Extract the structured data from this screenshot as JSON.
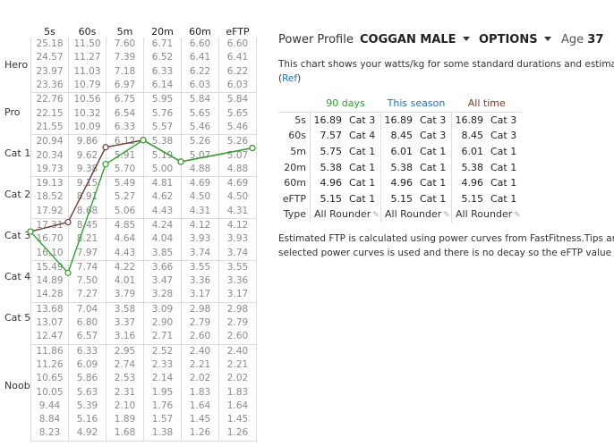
{
  "grid": {
    "columns": [
      "5s",
      "60s",
      "5m",
      "20m",
      "60m",
      "eFTP"
    ],
    "categories": [
      {
        "label": "Hero",
        "rows": [
          [
            "25.18",
            "11.50",
            "7.60",
            "6.71",
            "6.60",
            "6.60"
          ],
          [
            "24.57",
            "11.27",
            "7.39",
            "6.52",
            "6.41",
            "6.41"
          ],
          [
            "23.97",
            "11.03",
            "7.18",
            "6.33",
            "6.22",
            "6.22"
          ],
          [
            "23.36",
            "10.79",
            "6.97",
            "6.14",
            "6.03",
            "6.03"
          ]
        ]
      },
      {
        "label": "Pro",
        "rows": [
          [
            "22.76",
            "10.56",
            "6.75",
            "5.95",
            "5.84",
            "5.84"
          ],
          [
            "22.15",
            "10.32",
            "6.54",
            "5.76",
            "5.65",
            "5.65"
          ],
          [
            "21.55",
            "10.09",
            "6.33",
            "5.57",
            "5.46",
            "5.46"
          ]
        ]
      },
      {
        "label": "Cat 1",
        "rows": [
          [
            "20.94",
            "9.86",
            "6.12",
            "5.38",
            "5.26",
            "5.26"
          ],
          [
            "20.34",
            "9.62",
            "5.91",
            "5.19",
            "5.07",
            "5.07"
          ],
          [
            "19.73",
            "9.38",
            "5.70",
            "5.00",
            "4.88",
            "4.88"
          ]
        ]
      },
      {
        "label": "Cat 2",
        "rows": [
          [
            "19.13",
            "9.15",
            "5.49",
            "4.81",
            "4.69",
            "4.69"
          ],
          [
            "18.52",
            "8.91",
            "5.27",
            "4.62",
            "4.50",
            "4.50"
          ],
          [
            "17.92",
            "8.68",
            "5.06",
            "4.43",
            "4.31",
            "4.31"
          ]
        ]
      },
      {
        "label": "Cat 3",
        "rows": [
          [
            "17.31",
            "8.45",
            "4.85",
            "4.24",
            "4.12",
            "4.12"
          ],
          [
            "16.70",
            "8.21",
            "4.64",
            "4.04",
            "3.93",
            "3.93"
          ],
          [
            "16.10",
            "7.97",
            "4.43",
            "3.85",
            "3.74",
            "3.74"
          ]
        ]
      },
      {
        "label": "Cat 4",
        "rows": [
          [
            "15.49",
            "7.74",
            "4.22",
            "3.66",
            "3.55",
            "3.55"
          ],
          [
            "14.89",
            "7.50",
            "4.01",
            "3.47",
            "3.36",
            "3.36"
          ],
          [
            "14.28",
            "7.27",
            "3.79",
            "3.28",
            "3.17",
            "3.17"
          ]
        ]
      },
      {
        "label": "Cat 5",
        "rows": [
          [
            "13.68",
            "7.04",
            "3.58",
            "3.09",
            "2.98",
            "2.98"
          ],
          [
            "13.07",
            "6.80",
            "3.37",
            "2.90",
            "2.79",
            "2.79"
          ],
          [
            "12.47",
            "6.57",
            "3.16",
            "2.71",
            "2.60",
            "2.60"
          ]
        ]
      },
      {
        "label": "Noob",
        "rows": [
          [
            "11.86",
            "6.33",
            "2.95",
            "2.52",
            "2.40",
            "2.40"
          ],
          [
            "11.26",
            "6.09",
            "2.74",
            "2.33",
            "2.21",
            "2.21"
          ],
          [
            "10.65",
            "5.86",
            "2.53",
            "2.14",
            "2.02",
            "2.02"
          ],
          [
            "10.05",
            "5.63",
            "2.31",
            "1.95",
            "1.83",
            "1.83"
          ],
          [
            "9.44",
            "5.39",
            "2.10",
            "1.76",
            "1.64",
            "1.64"
          ],
          [
            "8.84",
            "5.16",
            "1.89",
            "1.57",
            "1.45",
            "1.45"
          ],
          [
            "8.23",
            "4.92",
            "1.68",
            "1.38",
            "1.26",
            "1.26"
          ]
        ]
      }
    ],
    "series": [
      {
        "name": "All time",
        "color": "#6b3a30",
        "values": [
          16.89,
          8.45,
          6.01,
          5.38,
          4.96,
          5.15
        ]
      },
      {
        "name": "90 days",
        "color": "#2ea02e",
        "values": [
          16.89,
          7.57,
          5.75,
          5.38,
          4.96,
          5.15
        ]
      }
    ]
  },
  "header": {
    "title": "Power Profile",
    "profile_select": "COGGAN MALE",
    "options_label": "OPTIONS",
    "age_label": "Age",
    "age_value": "37"
  },
  "description": {
    "line1": "This chart shows your watts/kg for some standard durations and estimated FTP p",
    "ref_open": "(",
    "ref_link": "Ref",
    "ref_close": ")"
  },
  "stats": {
    "columns": [
      {
        "label": "90 days",
        "color": "#2ea02e"
      },
      {
        "label": "This season",
        "color": "#1e6fc8"
      },
      {
        "label": "All time",
        "color": "#7a3a2a"
      }
    ],
    "rows": [
      {
        "label": "5s",
        "cells": [
          [
            "16.89",
            "Cat 3"
          ],
          [
            "16.89",
            "Cat 3"
          ],
          [
            "16.89",
            "Cat 3"
          ]
        ]
      },
      {
        "label": "60s",
        "cells": [
          [
            "7.57",
            "Cat 4"
          ],
          [
            "8.45",
            "Cat 3"
          ],
          [
            "8.45",
            "Cat 3"
          ]
        ]
      },
      {
        "label": "5m",
        "cells": [
          [
            "5.75",
            "Cat 1"
          ],
          [
            "6.01",
            "Cat 1"
          ],
          [
            "6.01",
            "Cat 1"
          ]
        ]
      },
      {
        "label": "20m",
        "cells": [
          [
            "5.38",
            "Cat 1"
          ],
          [
            "5.38",
            "Cat 1"
          ],
          [
            "5.38",
            "Cat 1"
          ]
        ]
      },
      {
        "label": "60m",
        "cells": [
          [
            "4.96",
            "Cat 1"
          ],
          [
            "4.96",
            "Cat 1"
          ],
          [
            "4.96",
            "Cat 1"
          ]
        ]
      },
      {
        "label": "eFTP",
        "cells": [
          [
            "5.15",
            "Cat 1"
          ],
          [
            "5.15",
            "Cat 1"
          ],
          [
            "5.15",
            "Cat 1"
          ]
        ]
      }
    ],
    "type_label": "Type",
    "type_values": [
      "All Rounder",
      "All Rounder",
      "All Rounder"
    ]
  },
  "footer": {
    "line1": "Estimated FTP is calculated using power curves from FastFitness.Tips and Mortor",
    "line2": "selected power curves is used and there is no decay so the eFTP value on the char"
  }
}
